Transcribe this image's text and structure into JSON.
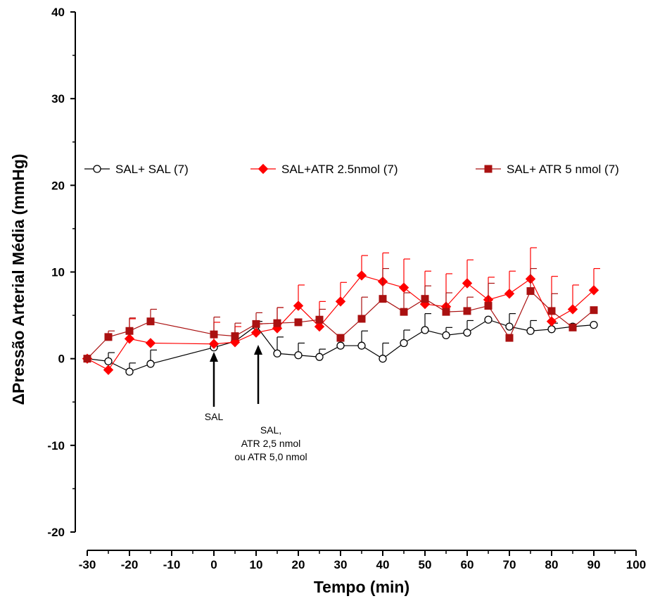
{
  "chart_data": {
    "type": "line",
    "title": "",
    "xlabel": "Tempo (min)",
    "ylabel": "ΔPressão Arterial Média (mmHg)",
    "xlim": [
      -30,
      100
    ],
    "ylim": [
      -20,
      40
    ],
    "xticks": [
      -30,
      -20,
      -10,
      0,
      10,
      20,
      30,
      40,
      50,
      60,
      70,
      80,
      90,
      100
    ],
    "xtick_labels": [
      "-30",
      "-20",
      "-10",
      "0",
      "10",
      "20",
      "30",
      "40",
      "50",
      "60",
      "70",
      "80",
      "90",
      "100"
    ],
    "yticks": [
      -20,
      -10,
      0,
      10,
      20,
      30,
      40
    ],
    "ytick_labels": [
      "-20",
      "-10",
      "0",
      "10",
      "20",
      "30",
      "40"
    ],
    "grid": false,
    "legend_position": "top",
    "series": [
      {
        "name": "SAL+ SAL (7)",
        "color": "#000000",
        "marker": "open-circle",
        "x": [
          -30,
          -25,
          -20,
          -15,
          0,
          5,
          10,
          15,
          20,
          25,
          30,
          35,
          40,
          45,
          50,
          55,
          60,
          65,
          70,
          75,
          80,
          85,
          90
        ],
        "y": [
          0,
          -0.3,
          -1.5,
          -0.6,
          1.3,
          2.0,
          3.8,
          0.6,
          0.4,
          0.2,
          1.5,
          1.5,
          0.0,
          1.8,
          3.3,
          2.7,
          3.0,
          4.5,
          3.7,
          3.2,
          3.4,
          3.7,
          3.9
        ],
        "err": [
          0,
          1.0,
          1.0,
          1.6,
          0,
          0,
          0.5,
          1.9,
          1.4,
          0.9,
          0,
          1.7,
          1.8,
          1.5,
          1.9,
          0.9,
          1.4,
          0,
          1.5,
          1.2,
          0.7,
          0,
          0
        ]
      },
      {
        "name": "SAL+ATR 2.5nmol (7)",
        "color": "#ff0000",
        "marker": "diamond",
        "x": [
          -30,
          -25,
          -20,
          -15,
          0,
          5,
          10,
          15,
          20,
          25,
          30,
          35,
          40,
          45,
          50,
          55,
          60,
          65,
          70,
          75,
          80,
          85,
          90
        ],
        "y": [
          0,
          -1.3,
          2.3,
          1.8,
          1.7,
          1.9,
          3.0,
          3.5,
          6.1,
          3.7,
          6.6,
          9.6,
          8.9,
          8.2,
          6.3,
          6.0,
          8.7,
          6.8,
          7.5,
          9.2,
          4.3,
          5.7,
          7.9
        ],
        "err": [
          0,
          0,
          2.3,
          0,
          2.5,
          1.8,
          1.0,
          2.4,
          2.4,
          2.9,
          2.2,
          2.3,
          3.3,
          3.3,
          3.8,
          3.8,
          2.7,
          2.6,
          2.6,
          3.6,
          5.2,
          2.8,
          2.5
        ]
      },
      {
        "name": "SAL+ ATR 5 nmol (7)",
        "color": "#aa1111",
        "marker": "square",
        "x": [
          -30,
          -25,
          -20,
          -15,
          0,
          5,
          10,
          15,
          20,
          25,
          30,
          35,
          40,
          45,
          50,
          55,
          60,
          65,
          70,
          75,
          80,
          85,
          90
        ],
        "y": [
          0,
          2.5,
          3.2,
          4.3,
          2.8,
          2.6,
          4.0,
          4.1,
          4.2,
          4.5,
          2.4,
          4.6,
          6.9,
          5.4,
          6.9,
          5.4,
          5.5,
          6.1,
          2.4,
          7.8,
          5.5,
          3.6,
          5.6
        ],
        "err": [
          0,
          0.7,
          1.5,
          1.4,
          2.0,
          1.5,
          1.3,
          1.8,
          0,
          1.2,
          0,
          2.5,
          3.5,
          2.2,
          1.5,
          2.2,
          1.6,
          2.6,
          0,
          2.6,
          2.0,
          0,
          0
        ]
      }
    ],
    "annotations": [
      {
        "x": 0,
        "label_lines": [
          "SAL"
        ]
      },
      {
        "x": 10.5,
        "label_lines": [
          "SAL,",
          "ATR 2,5 nmol",
          "ou ATR 5,0 nmol"
        ]
      }
    ]
  }
}
